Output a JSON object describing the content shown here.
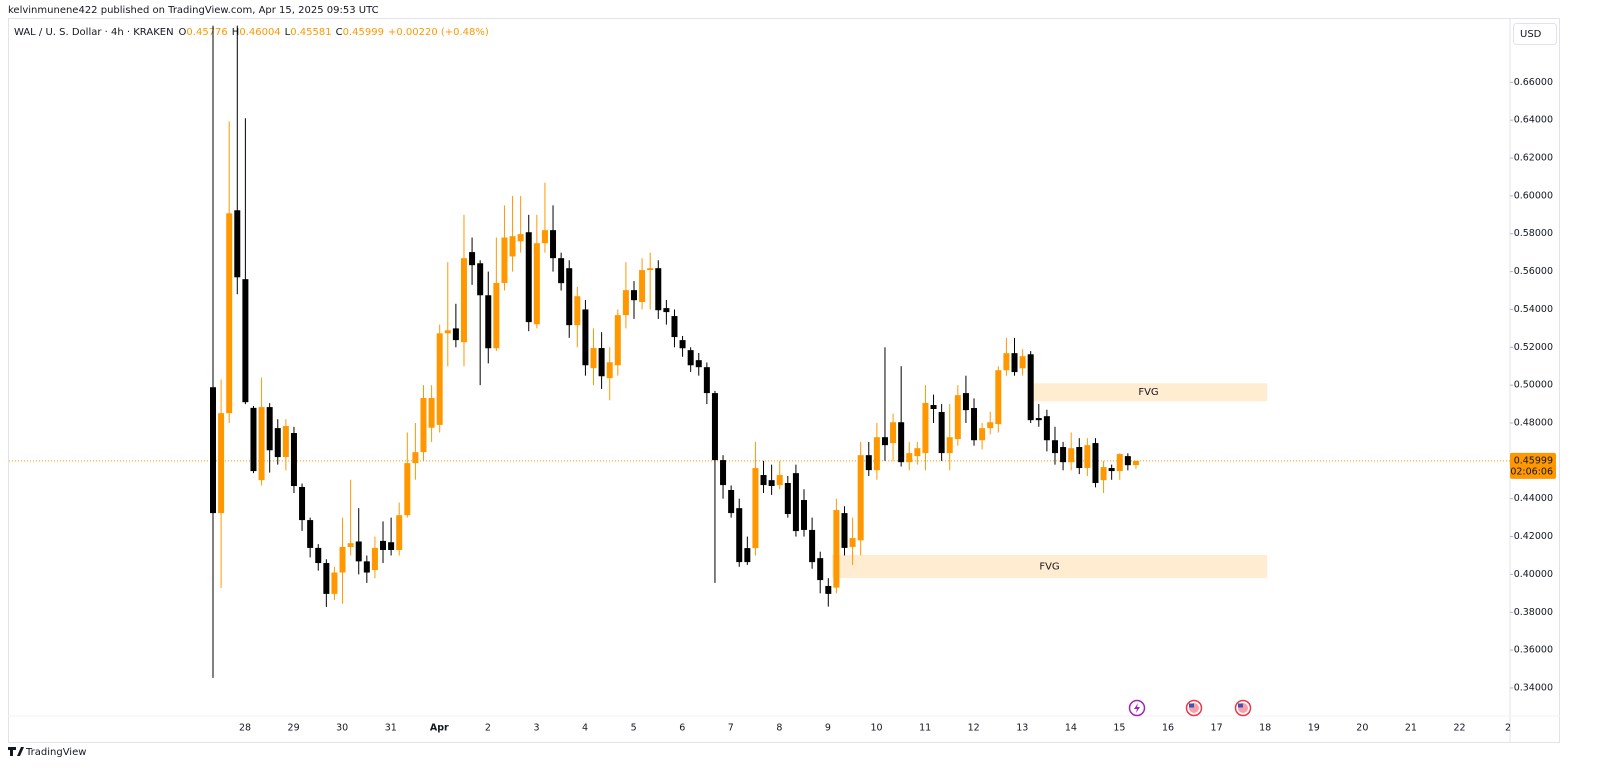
{
  "header": "kelvinmunene422 published on TradingView.com, Apr 15, 2025 09:53 UTC",
  "footer": "TradingView",
  "chart_data": {
    "type": "candlestick",
    "title": "WAL / U. S. Dollar · 4h · KRAKEN",
    "ohlc_labels": [
      "O",
      "H",
      "L",
      "C"
    ],
    "change": "+0.00220 (+0.48%)",
    "currency": "USD",
    "countdown": "02:06:06",
    "up_color": "#ff9800",
    "down_color": "#000000",
    "open": [
      0.4989,
      0.4324,
      0.4852,
      0.5924,
      0.556,
      0.488,
      0.4498,
      0.4884,
      0.4773,
      0.462,
      0.4747,
      0.4462,
      0.4287,
      0.414,
      0.406,
      0.3897,
      0.401,
      0.4145,
      0.4174,
      0.4069,
      0.4023,
      0.4177,
      0.417,
      0.4129,
      0.4313,
      0.4588,
      0.4646,
      0.4775,
      0.479,
      0.5274,
      0.53,
      0.5227,
      0.5703,
      0.5644,
      0.5475,
      0.5195,
      0.554,
      0.568,
      0.576,
      0.5808,
      0.5322,
      0.575,
      0.5819,
      0.5671,
      0.5618,
      0.5317,
      0.54,
      0.509,
      0.5196,
      0.5037,
      0.5105,
      0.537,
      0.5502,
      0.5439,
      0.5608,
      0.5618,
      0.5407,
      0.5365,
      0.5238,
      0.5185,
      0.5132,
      0.5095,
      0.4958,
      0.4604,
      0.4446,
      0.435,
      0.4139,
      0.4139,
      0.4525,
      0.4498,
      0.4472,
      0.4483,
      0.4535,
      0.4393,
      0.4235,
      0.4086,
      0.3939,
      0.393,
      0.4324,
      0.4145,
      0.418,
      0.463,
      0.4551,
      0.4725,
      0.4694,
      0.4804,
      0.4593,
      0.4625,
      0.4641,
      0.4895,
      0.4858,
      0.4641,
      0.4715,
      0.4958,
      0.4879,
      0.4709,
      0.4773,
      0.4794,
      0.5079,
      0.5169,
      0.5089,
      0.5163,
      0.4826,
      0.4836,
      0.4709,
      0.4673,
      0.4593,
      0.4673,
      0.4562,
      0.4694,
      0.4498,
      0.4562,
      0.4546,
      0.4625,
      0.45776
    ],
    "high": [
      0.69,
      0.503,
      0.6394,
      0.69,
      0.641,
      0.489,
      0.504,
      0.4905,
      0.482,
      0.482,
      0.478,
      0.448,
      0.43,
      0.416,
      0.408,
      0.404,
      0.43,
      0.45,
      0.435,
      0.41,
      0.42,
      0.428,
      0.43,
      0.438,
      0.475,
      0.48,
      0.5,
      0.5,
      0.532,
      0.565,
      0.543,
      0.59,
      0.578,
      0.566,
      0.56,
      0.578,
      0.595,
      0.6,
      0.6,
      0.59,
      0.59,
      0.607,
      0.595,
      0.57,
      0.566,
      0.552,
      0.545,
      0.53,
      0.528,
      0.52,
      0.54,
      0.565,
      0.555,
      0.567,
      0.57,
      0.566,
      0.545,
      0.54,
      0.526,
      0.52,
      0.517,
      0.512,
      0.497,
      0.463,
      0.447,
      0.44,
      0.42,
      0.47,
      0.46,
      0.458,
      0.46,
      0.452,
      0.458,
      0.445,
      0.43,
      0.412,
      0.398,
      0.44,
      0.436,
      0.43,
      0.47,
      0.47,
      0.48,
      0.52,
      0.485,
      0.51,
      0.47,
      0.47,
      0.5,
      0.495,
      0.49,
      0.49,
      0.5,
      0.505,
      0.493,
      0.48,
      0.486,
      0.51,
      0.525,
      0.525,
      0.519,
      0.518,
      0.49,
      0.487,
      0.478,
      0.47,
      0.475,
      0.472,
      0.472,
      0.472,
      0.46,
      0.458,
      0.464,
      0.464,
      0.46004
    ],
    "low": [
      0.3453,
      0.3929,
      0.48,
      0.548,
      0.49,
      0.4535,
      0.447,
      0.4538,
      0.458,
      0.455,
      0.443,
      0.423,
      0.409,
      0.402,
      0.3828,
      0.3865,
      0.3845,
      0.41,
      0.4,
      0.3955,
      0.398,
      0.406,
      0.41,
      0.41,
      0.43,
      0.45,
      0.46,
      0.47,
      0.475,
      0.51,
      0.52,
      0.51,
      0.553,
      0.5,
      0.5115,
      0.518,
      0.55,
      0.56,
      0.57,
      0.5285,
      0.53,
      0.57,
      0.56,
      0.55,
      0.525,
      0.52,
      0.505,
      0.5,
      0.498,
      0.492,
      0.505,
      0.53,
      0.535,
      0.54,
      0.54,
      0.535,
      0.532,
      0.52,
      0.515,
      0.507,
      0.505,
      0.49,
      0.3955,
      0.44,
      0.43,
      0.404,
      0.405,
      0.41,
      0.443,
      0.442,
      0.445,
      0.43,
      0.42,
      0.42,
      0.403,
      0.39,
      0.383,
      0.39,
      0.41,
      0.405,
      0.41,
      0.452,
      0.45,
      0.46,
      0.46,
      0.457,
      0.455,
      0.458,
      0.455,
      0.48,
      0.46,
      0.455,
      0.468,
      0.48,
      0.468,
      0.466,
      0.474,
      0.475,
      0.505,
      0.505,
      0.505,
      0.48,
      0.478,
      0.465,
      0.458,
      0.455,
      0.455,
      0.453,
      0.452,
      0.446,
      0.443,
      0.45,
      0.45,
      0.455,
      0.45581
    ],
    "close": [
      0.4324,
      0.4852,
      0.5908,
      0.557,
      0.491,
      0.4546,
      0.4884,
      0.4656,
      0.462,
      0.4784,
      0.4467,
      0.4287,
      0.414,
      0.406,
      0.3897,
      0.401,
      0.4145,
      0.4165,
      0.4069,
      0.401,
      0.414,
      0.4129,
      0.4129,
      0.4313,
      0.4588,
      0.4646,
      0.4932,
      0.4932,
      0.5274,
      0.529,
      0.5238,
      0.5671,
      0.5634,
      0.5475,
      0.5195,
      0.554,
      0.578,
      0.5787,
      0.5798,
      0.5333,
      0.575,
      0.5819,
      0.5671,
      0.5539,
      0.5317,
      0.547,
      0.5105,
      0.5196,
      0.5047,
      0.5121,
      0.537,
      0.5502,
      0.5449,
      0.5608,
      0.5618,
      0.5396,
      0.5386,
      0.5254,
      0.5195,
      0.5105,
      0.5095,
      0.4958,
      0.4604,
      0.4472,
      0.4324,
      0.4065,
      0.4065,
      0.4562,
      0.4472,
      0.4467,
      0.4525,
      0.4319,
      0.4229,
      0.4235,
      0.4065,
      0.397,
      0.3897,
      0.434,
      0.414,
      0.4192,
      0.463,
      0.4551,
      0.4725,
      0.4683,
      0.4804,
      0.4593,
      0.4641,
      0.4667,
      0.4906,
      0.4874,
      0.4641,
      0.4725,
      0.4947,
      0.4868,
      0.4709,
      0.4773,
      0.4804,
      0.5079,
      0.5169,
      0.5069,
      0.5153,
      0.4815,
      0.4815,
      0.4709,
      0.4641,
      0.4593,
      0.4667,
      0.4562,
      0.4683,
      0.4483,
      0.4567,
      0.4546,
      0.4636,
      0.4577,
      0.45999
    ],
    "x_labels": [
      "28",
      "29",
      "30",
      "31",
      "Apr",
      "2",
      "3",
      "4",
      "5",
      "6",
      "7",
      "8",
      "9",
      "10",
      "11",
      "12",
      "13",
      "14",
      "15",
      "16",
      "17",
      "18",
      "19",
      "20",
      "21",
      "22",
      "2"
    ],
    "ylim": [
      0.3125,
      0.694
    ],
    "yticks": [
      {
        "value": 0.34,
        "label": "0.34000"
      },
      {
        "value": 0.36,
        "label": "0.36000"
      },
      {
        "value": 0.38,
        "label": "0.38000"
      },
      {
        "value": 0.4,
        "label": "0.40000"
      },
      {
        "value": 0.42,
        "label": "0.42000"
      },
      {
        "value": 0.44,
        "label": "0.44000"
      },
      {
        "value": 0.46,
        "label": "0.46000"
      },
      {
        "value": 0.48,
        "label": "0.48000"
      },
      {
        "value": 0.5,
        "label": "0.50000"
      },
      {
        "value": 0.52,
        "label": "0.52000"
      },
      {
        "value": 0.54,
        "label": "0.54000"
      },
      {
        "value": 0.56,
        "label": "0.56000"
      },
      {
        "value": 0.58,
        "label": "0.58000"
      },
      {
        "value": 0.6,
        "label": "0.60000"
      },
      {
        "value": 0.62,
        "label": "0.62000"
      },
      {
        "value": 0.64,
        "label": "0.64000"
      },
      {
        "value": 0.66,
        "label": "0.66000"
      }
    ],
    "zones": [
      {
        "label": "FVG",
        "top": 0.501,
        "bottom": 0.4915
      },
      {
        "label": "FVG",
        "top": 0.4103,
        "bottom": 0.3981
      }
    ]
  }
}
